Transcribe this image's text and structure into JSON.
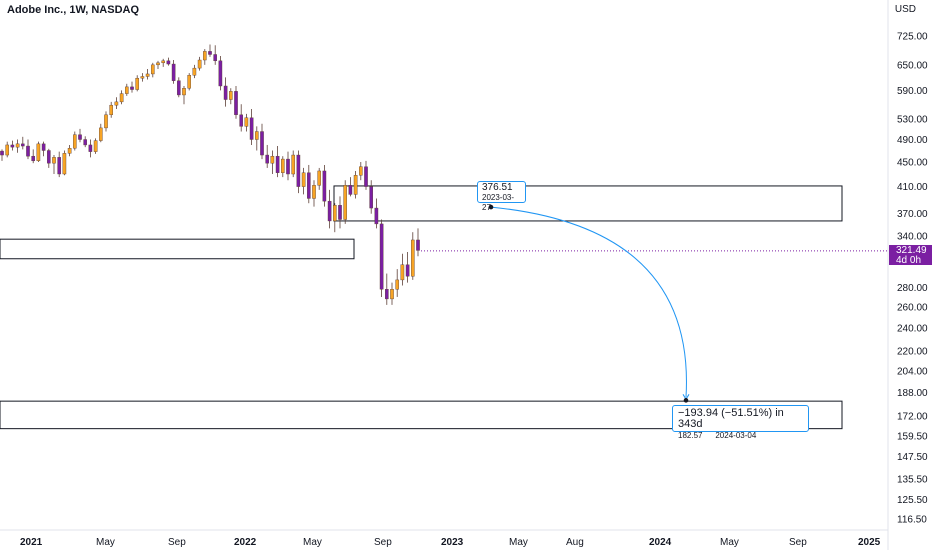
{
  "header": {
    "title": "Adobe Inc., 1W, NASDAQ",
    "currency": "USD"
  },
  "last_price": {
    "value": "321.49",
    "countdown": "4d 0h"
  },
  "annotations": {
    "point": {
      "price": "376.51",
      "date": "2023-03-27"
    },
    "target": {
      "change": "−193.94 (−51.51%) in 343d",
      "price": "182.57",
      "date": "2024-03-04"
    }
  },
  "colors": {
    "up": "#f7a425",
    "down": "#7b1fa2",
    "wick": "#5d4037",
    "measure": "#2196f3",
    "box": "#131722",
    "price_tag": "#7b1fa2"
  },
  "chart_data": {
    "type": "candlestick",
    "title": "Adobe Inc., 1W, NASDAQ",
    "y_scale": "log",
    "ylim": [
      110,
      790
    ],
    "y_ticks": [
      "725.00",
      "650.00",
      "590.00",
      "530.00",
      "490.00",
      "450.00",
      "410.00",
      "370.00",
      "340.00",
      "280.00",
      "260.00",
      "240.00",
      "220.00",
      "204.00",
      "188.00",
      "172.00",
      "159.50",
      "147.50",
      "135.50",
      "125.50",
      "116.50"
    ],
    "x_ticks": [
      "2021",
      "May",
      "Sep",
      "2022",
      "May",
      "Sep",
      "2023",
      "May",
      "Aug",
      "2024",
      "May",
      "Sep",
      "2025"
    ],
    "candles": [
      [
        469,
        472,
        452,
        462
      ],
      [
        462,
        486,
        458,
        480
      ],
      [
        480,
        488,
        470,
        476
      ],
      [
        476,
        490,
        466,
        482
      ],
      [
        482,
        495,
        472,
        478
      ],
      [
        478,
        490,
        455,
        460
      ],
      [
        460,
        472,
        448,
        452
      ],
      [
        452,
        486,
        450,
        482
      ],
      [
        482,
        486,
        460,
        470
      ],
      [
        470,
        473,
        440,
        448
      ],
      [
        448,
        462,
        430,
        458
      ],
      [
        458,
        468,
        425,
        430
      ],
      [
        430,
        470,
        428,
        465
      ],
      [
        465,
        480,
        460,
        474
      ],
      [
        474,
        505,
        470,
        499
      ],
      [
        499,
        510,
        485,
        490
      ],
      [
        490,
        496,
        476,
        480
      ],
      [
        480,
        490,
        458,
        468
      ],
      [
        468,
        492,
        464,
        488
      ],
      [
        488,
        520,
        485,
        512
      ],
      [
        512,
        545,
        505,
        538
      ],
      [
        538,
        565,
        532,
        558
      ],
      [
        558,
        575,
        550,
        565
      ],
      [
        565,
        590,
        560,
        583
      ],
      [
        583,
        605,
        578,
        598
      ],
      [
        598,
        610,
        585,
        592
      ],
      [
        592,
        625,
        588,
        618
      ],
      [
        618,
        630,
        610,
        622
      ],
      [
        622,
        640,
        615,
        628
      ],
      [
        628,
        655,
        620,
        650
      ],
      [
        650,
        660,
        640,
        655
      ],
      [
        655,
        665,
        645,
        660
      ],
      [
        660,
        668,
        648,
        652
      ],
      [
        652,
        662,
        605,
        612
      ],
      [
        612,
        620,
        575,
        580
      ],
      [
        580,
        600,
        560,
        595
      ],
      [
        595,
        630,
        590,
        625
      ],
      [
        625,
        650,
        618,
        642
      ],
      [
        642,
        670,
        636,
        662
      ],
      [
        662,
        690,
        650,
        684
      ],
      [
        684,
        702,
        670,
        676
      ],
      [
        676,
        700,
        650,
        660
      ],
      [
        660,
        672,
        590,
        600
      ],
      [
        600,
        620,
        555,
        570
      ],
      [
        570,
        595,
        560,
        588
      ],
      [
        588,
        600,
        530,
        538
      ],
      [
        538,
        560,
        505,
        515
      ],
      [
        515,
        540,
        505,
        532
      ],
      [
        532,
        550,
        480,
        490
      ],
      [
        490,
        515,
        470,
        505
      ],
      [
        505,
        520,
        455,
        462
      ],
      [
        462,
        480,
        440,
        448
      ],
      [
        448,
        470,
        430,
        460
      ],
      [
        460,
        478,
        425,
        432
      ],
      [
        432,
        460,
        425,
        455
      ],
      [
        455,
        468,
        420,
        430
      ],
      [
        430,
        470,
        425,
        462
      ],
      [
        462,
        470,
        400,
        410
      ],
      [
        410,
        440,
        398,
        432
      ],
      [
        432,
        445,
        385,
        392
      ],
      [
        392,
        420,
        380,
        412
      ],
      [
        412,
        440,
        405,
        435
      ],
      [
        435,
        445,
        380,
        388
      ],
      [
        388,
        405,
        350,
        360
      ],
      [
        360,
        385,
        345,
        382
      ],
      [
        382,
        395,
        350,
        362
      ],
      [
        362,
        420,
        356,
        412
      ],
      [
        412,
        425,
        395,
        398
      ],
      [
        398,
        435,
        392,
        428
      ],
      [
        428,
        450,
        420,
        442
      ],
      [
        442,
        452,
        405,
        410
      ],
      [
        410,
        420,
        370,
        378
      ],
      [
        378,
        392,
        350,
        356
      ],
      [
        356,
        362,
        270,
        278
      ],
      [
        278,
        295,
        262,
        268
      ],
      [
        268,
        285,
        262,
        278
      ],
      [
        278,
        300,
        270,
        288
      ],
      [
        288,
        318,
        282,
        305
      ],
      [
        305,
        320,
        285,
        292
      ],
      [
        292,
        345,
        288,
        335
      ],
      [
        335,
        350,
        315,
        322
      ]
    ],
    "zones": [
      {
        "top": 336,
        "bottom": 312
      },
      {
        "top": 411,
        "bottom": 360
      },
      {
        "top": 182,
        "bottom": 164
      }
    ]
  }
}
